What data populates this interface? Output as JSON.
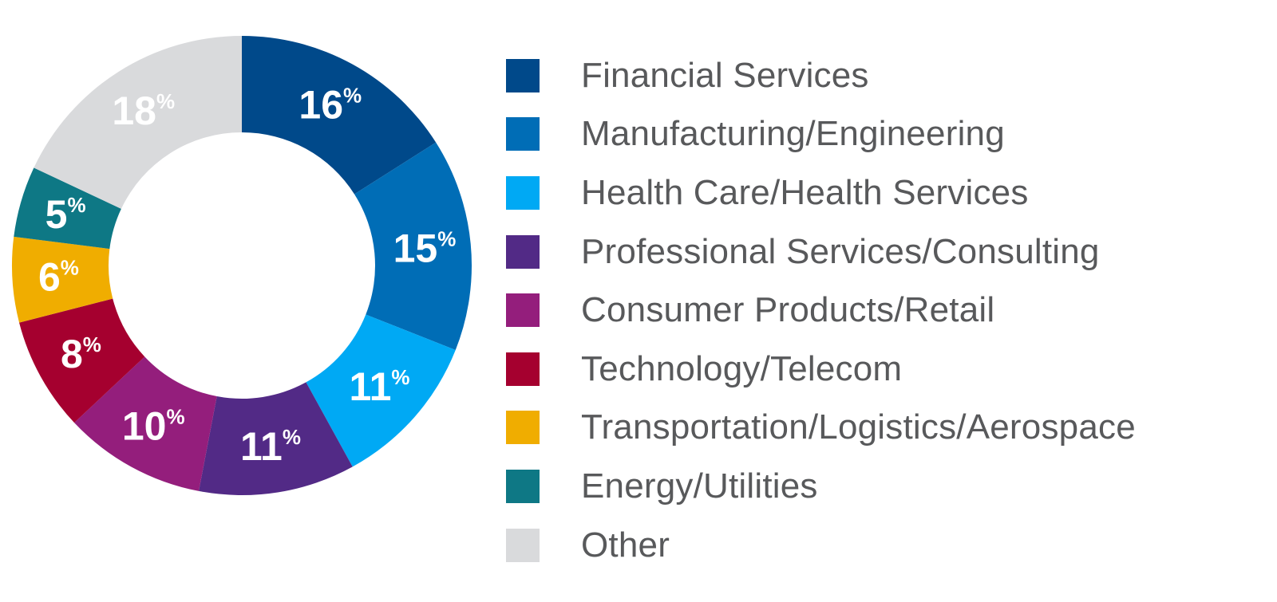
{
  "chart_data": {
    "type": "pie",
    "variant": "donut",
    "legend_position": "right",
    "slices": [
      {
        "name": "Financial Services",
        "value": 16,
        "label": "16%",
        "color": "#00498a"
      },
      {
        "name": "Manufacturing/Engineering",
        "value": 15,
        "label": "15%",
        "color": "#006db6"
      },
      {
        "name": "Health Care/Health Services",
        "value": 11,
        "label": "11%",
        "color": "#00a9f4"
      },
      {
        "name": "Professional Services/Consulting",
        "value": 11,
        "label": "11%",
        "color": "#522a86"
      },
      {
        "name": "Consumer Products/Retail",
        "value": 10,
        "label": "10%",
        "color": "#941e7c"
      },
      {
        "name": "Technology/Telecom",
        "value": 8,
        "label": "8%",
        "color": "#a5002f"
      },
      {
        "name": "Transportation/Logistics/Aerospace",
        "value": 6,
        "label": "6%",
        "color": "#f0ad00"
      },
      {
        "name": "Energy/Utilities",
        "value": 5,
        "label": "5%",
        "color": "#0e7885"
      },
      {
        "name": "Other",
        "value": 18,
        "label": "18%",
        "color": "#d9dadc"
      }
    ]
  }
}
